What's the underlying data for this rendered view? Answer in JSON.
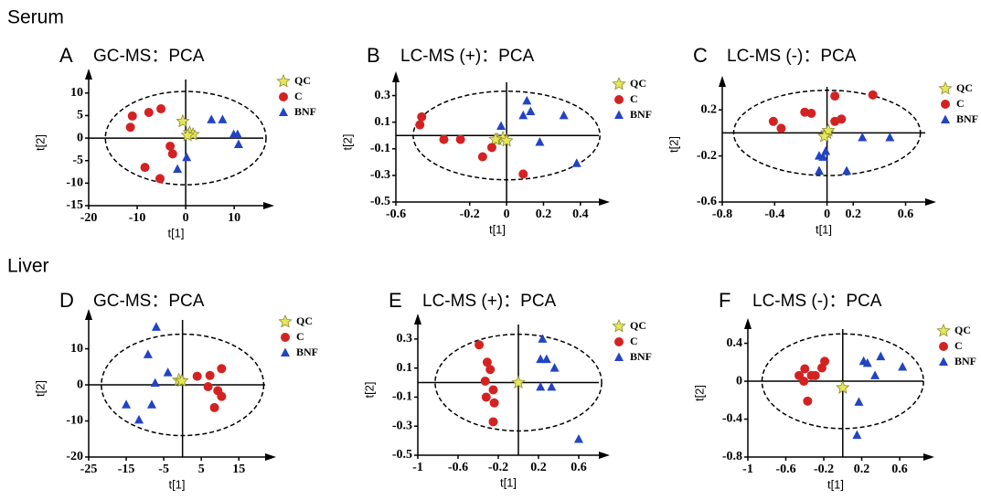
{
  "sections": [
    "Serum",
    "Liver"
  ],
  "chart_data": [
    {
      "type": "scatter",
      "panel": "A",
      "title": "GC-MS：PCA",
      "xlabel": "t[1]",
      "ylabel": "t[2]",
      "xlim": [
        -20,
        16
      ],
      "ylim": [
        -15,
        13
      ],
      "xticks": [
        -20,
        -10,
        0,
        10
      ],
      "yticks": [
        10,
        5,
        0,
        -5,
        -10,
        -15
      ],
      "series": [
        {
          "name": "QC",
          "marker": "star",
          "color": "#e6e65a",
          "x": [
            -0.6,
            0.8,
            1.5,
            0.4
          ],
          "values": [
            3.7,
            1.2,
            0.8,
            0.6
          ]
        },
        {
          "name": "C",
          "marker": "circle",
          "color": "#d42222",
          "x": [
            -11.0,
            -7.6,
            -5.1,
            -11.4,
            -3.2,
            -2.7,
            -8.4,
            -5.3
          ],
          "values": [
            4.9,
            5.7,
            6.5,
            2.4,
            -1.8,
            -3.5,
            -6.5,
            -9.0
          ]
        },
        {
          "name": "BNF",
          "marker": "triangle",
          "color": "#2244c4",
          "x": [
            5.3,
            7.6,
            9.9,
            10.7,
            10.9,
            0.2,
            -1.7
          ],
          "values": [
            4.1,
            4.1,
            0.8,
            0.8,
            -1.4,
            -4.3,
            -6.9
          ]
        }
      ]
    },
    {
      "type": "scatter",
      "panel": "B",
      "title": "LC-MS (+)：PCA",
      "xlabel": "t[1]",
      "ylabel": "t[2]",
      "xlim": [
        -0.6,
        0.5
      ],
      "ylim": [
        -0.5,
        0.4
      ],
      "xticks": [
        -0.6,
        -0.2,
        0,
        0.2,
        0.4
      ],
      "yticks": [
        0.3,
        0.1,
        -0.1,
        -0.3,
        -0.5
      ],
      "series": [
        {
          "name": "QC",
          "marker": "star",
          "color": "#e6e65a",
          "x": [
            -0.05,
            -0.02,
            0,
            -0.06
          ],
          "values": [
            -0.03,
            -0.02,
            -0.04,
            -0.03
          ]
        },
        {
          "name": "C",
          "marker": "circle",
          "color": "#d42222",
          "x": [
            -0.46,
            -0.47,
            -0.34,
            -0.25,
            -0.13,
            -0.08,
            0.09
          ],
          "values": [
            0.14,
            0.08,
            -0.03,
            -0.03,
            -0.16,
            -0.09,
            -0.29
          ]
        },
        {
          "name": "BNF",
          "marker": "triangle",
          "color": "#2244c4",
          "x": [
            -0.03,
            0.11,
            0.13,
            0.09,
            0.31,
            0.18,
            0.38
          ],
          "values": [
            0.07,
            0.26,
            0.18,
            0.15,
            0.15,
            -0.05,
            -0.21
          ]
        }
      ]
    },
    {
      "type": "scatter",
      "panel": "C",
      "title": "LC-MS (-)：PCA",
      "xlabel": "t[1]",
      "ylabel": "t[2]",
      "xlim": [
        -0.8,
        0.75
      ],
      "ylim": [
        -0.6,
        0.4
      ],
      "xticks": [
        -0.8,
        -0.4,
        0,
        0.2,
        0.6
      ],
      "yticks": [
        0.2,
        -0.2,
        -0.6
      ],
      "series": [
        {
          "name": "QC",
          "marker": "star",
          "color": "#e6e65a",
          "x": [
            0,
            0.01,
            -0.02
          ],
          "values": [
            0,
            0.02,
            -0.03
          ]
        },
        {
          "name": "C",
          "marker": "circle",
          "color": "#d42222",
          "x": [
            -0.41,
            -0.35,
            -0.17,
            -0.12,
            0.06,
            0.06,
            0.11,
            0.35
          ],
          "values": [
            0.1,
            0.04,
            0.18,
            0.17,
            0.32,
            0.1,
            0.12,
            0.33
          ]
        },
        {
          "name": "BNF",
          "marker": "triangle",
          "color": "#2244c4",
          "x": [
            -0.06,
            -0.03,
            -0.06,
            -0.01,
            0.15,
            0.27,
            0.48
          ],
          "values": [
            -0.2,
            -0.21,
            -0.33,
            -0.16,
            -0.33,
            -0.04,
            -0.04
          ]
        }
      ]
    },
    {
      "type": "scatter",
      "panel": "D",
      "title": "GC-MS：PCA",
      "xlabel": "t[1]",
      "ylabel": "t[2]",
      "xlim": [
        -25,
        22
      ],
      "ylim": [
        -20,
        18
      ],
      "xticks": [
        -25,
        -15,
        -5,
        5,
        15
      ],
      "yticks": [
        10,
        0,
        -10,
        -20
      ],
      "series": [
        {
          "name": "QC",
          "marker": "star",
          "color": "#e6e65a",
          "x": [
            -1,
            -0.2
          ],
          "values": [
            1.3,
            1.1
          ]
        },
        {
          "name": "C",
          "marker": "circle",
          "color": "#d42222",
          "x": [
            3.9,
            7.3,
            10.4,
            6.8,
            9.4,
            10.4,
            8.5
          ],
          "values": [
            2.4,
            2.6,
            4.5,
            -0.5,
            -1.6,
            -3.2,
            -6.3
          ]
        },
        {
          "name": "BNF",
          "marker": "triangle",
          "color": "#2244c4",
          "x": [
            -7,
            -9.2,
            -3.9,
            -7.3,
            -15,
            -8.2,
            -11.6
          ],
          "values": [
            16,
            8.4,
            3.4,
            0.5,
            -5.5,
            -5.5,
            -9.7
          ]
        }
      ]
    },
    {
      "type": "scatter",
      "panel": "E",
      "title": "LC-MS (+)：PCA",
      "xlabel": "t[1]",
      "ylabel": "t[2]",
      "xlim": [
        -1,
        0.8
      ],
      "ylim": [
        -0.5,
        0.4
      ],
      "xticks": [
        -1,
        -0.6,
        -0.2,
        0.2,
        0.6
      ],
      "yticks": [
        0.3,
        0.1,
        -0.1,
        -0.3,
        -0.5
      ],
      "series": [
        {
          "name": "QC",
          "marker": "star",
          "color": "#e6e65a",
          "x": [
            0
          ],
          "values": [
            0
          ]
        },
        {
          "name": "C",
          "marker": "circle",
          "color": "#d42222",
          "x": [
            -0.39,
            -0.31,
            -0.28,
            -0.33,
            -0.25,
            -0.32,
            -0.24,
            -0.25
          ],
          "values": [
            0.26,
            0.14,
            0.09,
            0.01,
            -0.05,
            -0.1,
            -0.14,
            -0.27
          ]
        },
        {
          "name": "BNF",
          "marker": "triangle",
          "color": "#2244c4",
          "x": [
            0.24,
            0.22,
            0.28,
            0.36,
            0.22,
            0.33,
            0.6
          ],
          "values": [
            0.3,
            0.16,
            0.16,
            0.1,
            -0.03,
            -0.03,
            -0.39
          ]
        }
      ]
    },
    {
      "type": "scatter",
      "panel": "F",
      "title": "LC-MS (-)：PCA",
      "xlabel": "t[1]",
      "ylabel": "t[2]",
      "xlim": [
        -1,
        0.85
      ],
      "ylim": [
        -0.8,
        0.55
      ],
      "xticks": [
        -1,
        -0.6,
        -0.2,
        0.2,
        0.6
      ],
      "yticks": [
        0.4,
        0,
        -0.4,
        -0.8
      ],
      "series": [
        {
          "name": "QC",
          "marker": "star",
          "color": "#e6e65a",
          "x": [
            0
          ],
          "values": [
            -0.07
          ]
        },
        {
          "name": "C",
          "marker": "circle",
          "color": "#d42222",
          "x": [
            -0.4,
            -0.22,
            -0.19,
            -0.41,
            -0.33,
            -0.29,
            -0.37,
            -0.46
          ],
          "values": [
            0.13,
            0.14,
            0.21,
            0,
            0.06,
            0.06,
            -0.21,
            0.06
          ]
        },
        {
          "name": "BNF",
          "marker": "triangle",
          "color": "#2244c4",
          "x": [
            0.22,
            0.26,
            0.4,
            0.34,
            0.63,
            0.17,
            0.15
          ],
          "values": [
            0.21,
            0.19,
            0.26,
            0.06,
            0.15,
            -0.22,
            -0.57
          ]
        }
      ]
    }
  ]
}
